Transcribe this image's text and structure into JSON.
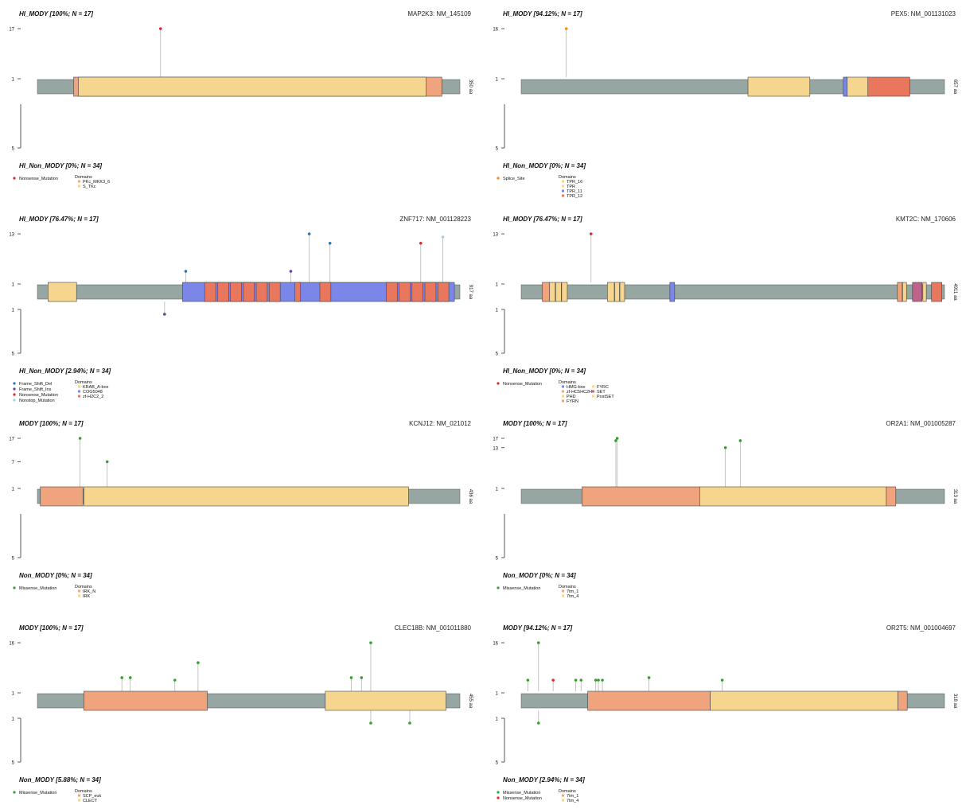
{
  "colors": {
    "backbone": "#95a6a3",
    "Nonsense_Mutation": "#e3242b",
    "Splice_Site": "#f5881f",
    "Frame_Shift_Del": "#1f78b4",
    "Frame_Shift_Ins": "#6a3d9a",
    "Nonstop_Mutation": "#a6cee3",
    "Missense_Mutation": "#33a02c",
    "lollipop_line": "#b5b5b5"
  },
  "chart_data": [
    {
      "type": "lollipop",
      "gene": "MAP2K3: NM_145109",
      "top_label": "HI_MODY [100%; N = 17]",
      "bottom_label": "HI_Non_MODY [0%; N = 34]",
      "protein_length": 350,
      "length_label": "350 aa",
      "top_ticks": [
        "17",
        "1"
      ],
      "bottom_ticks": [
        "5"
      ],
      "domains": [
        {
          "name": "PKc_MKK3_6",
          "start": 30,
          "end": 335,
          "color": "#f0a47e"
        },
        {
          "name": "S_TKc",
          "start": 34,
          "end": 322,
          "color": "#f6d68f"
        }
      ],
      "mutations": [
        {
          "pos": 102,
          "count": 17,
          "side": "top",
          "type": "Nonsense_Mutation"
        }
      ],
      "legend": [
        "Nonsense_Mutation"
      ]
    },
    {
      "type": "lollipop",
      "gene": "PEX5: NM_001131023",
      "top_label": "HI_MODY [94.12%; N = 17]",
      "bottom_label": "HI_Non_MODY [0%; N = 34]",
      "protein_length": 657,
      "length_label": "657 aa",
      "top_ticks": [
        "16",
        "1"
      ],
      "bottom_ticks": [
        "5"
      ],
      "domains": [
        {
          "name": "TPR_16",
          "start": 352,
          "end": 448,
          "color": "#f6d68f"
        },
        {
          "name": "TPR",
          "start": 504,
          "end": 540,
          "color": "#f6d68f"
        },
        {
          "name": "TPR_11",
          "start": 500,
          "end": 506,
          "color": "#7b87e8"
        },
        {
          "name": "TPR_12",
          "start": 538,
          "end": 603,
          "color": "#e8775e"
        }
      ],
      "mutations": [
        {
          "pos": 70,
          "count": 16,
          "side": "top",
          "type": "Splice_Site"
        }
      ],
      "legend": [
        "Splice_Site"
      ]
    },
    {
      "type": "lollipop",
      "gene": "ZNF717: NM_001128223",
      "top_label": "HI_MODY [76.47%; N = 17]",
      "bottom_label": "HI_Non_MODY [2.94%; N = 34]",
      "protein_length": 917,
      "length_label": "917 aa",
      "top_ticks": [
        "13",
        "1"
      ],
      "bottom_ticks": [
        "1",
        "5"
      ],
      "domains": [
        {
          "name": "KRAB_A-box",
          "start": 23,
          "end": 85,
          "color": "#f6d68f"
        },
        {
          "name": "COG5048",
          "start": 315,
          "end": 905,
          "color": "#7b87e8"
        },
        {
          "name": "zf-H2C2_2",
          "start": 363,
          "end": 387,
          "color": "#e8775e"
        },
        {
          "name": "zf-H2C2_2",
          "start": 391,
          "end": 415,
          "color": "#e8775e"
        },
        {
          "name": "zf-H2C2_2",
          "start": 419,
          "end": 443,
          "color": "#e8775e"
        },
        {
          "name": "zf-H2C2_2",
          "start": 447,
          "end": 471,
          "color": "#e8775e"
        },
        {
          "name": "zf-H2C2_2",
          "start": 475,
          "end": 499,
          "color": "#e8775e"
        },
        {
          "name": "zf-H2C2_2",
          "start": 503,
          "end": 527,
          "color": "#e8775e"
        },
        {
          "name": "zf-H2C2_2",
          "start": 559,
          "end": 571,
          "color": "#e8775e"
        },
        {
          "name": "zf-H2C2_2",
          "start": 613,
          "end": 637,
          "color": "#e8775e"
        },
        {
          "name": "zf-H2C2_2",
          "start": 757,
          "end": 781,
          "color": "#e8775e"
        },
        {
          "name": "zf-H2C2_2",
          "start": 785,
          "end": 809,
          "color": "#e8775e"
        },
        {
          "name": "zf-H2C2_2",
          "start": 813,
          "end": 837,
          "color": "#e8775e"
        },
        {
          "name": "zf-H2C2_2",
          "start": 841,
          "end": 865,
          "color": "#e8775e"
        },
        {
          "name": "zf-H2C2_2",
          "start": 869,
          "end": 893,
          "color": "#e8775e"
        }
      ],
      "mutations": [
        {
          "pos": 322,
          "count": 1,
          "side": "top",
          "type": "Frame_Shift_Del"
        },
        {
          "pos": 550,
          "count": 1,
          "side": "top",
          "type": "Frame_Shift_Ins"
        },
        {
          "pos": 590,
          "count": 13,
          "side": "top",
          "type": "Frame_Shift_Del"
        },
        {
          "pos": 635,
          "count": 10,
          "side": "top",
          "type": "Frame_Shift_Del"
        },
        {
          "pos": 832,
          "count": 10,
          "side": "top",
          "type": "Nonsense_Mutation"
        },
        {
          "pos": 880,
          "count": 12,
          "side": "top",
          "type": "Nonstop_Mutation"
        },
        {
          "pos": 276,
          "count": 1,
          "side": "bottom",
          "type": "Frame_Shift_Ins"
        }
      ],
      "legend": [
        "Frame_Shift_Del",
        "Frame_Shift_Ins",
        "Nonsense_Mutation",
        "Nonstop_Mutation"
      ]
    },
    {
      "type": "lollipop",
      "gene": "KMT2C: NM_170606",
      "top_label": "HI_MODY [76.47%; N = 17]",
      "bottom_label": "HI_Non_MODY [0%; N = 34]",
      "protein_length": 4911,
      "length_label": "4911 aa",
      "top_ticks": [
        "13",
        "1"
      ],
      "bottom_ticks": [
        "1",
        "5"
      ],
      "domains": [
        {
          "name": "HMG-box",
          "start": 1725,
          "end": 1780,
          "color": "#7b87e8"
        },
        {
          "name": "zf-HC5HC2H",
          "start": 245,
          "end": 330,
          "color": "#f0a47e"
        },
        {
          "name": "PHD",
          "start": 330,
          "end": 395,
          "color": "#f6d68f"
        },
        {
          "name": "PHD",
          "start": 400,
          "end": 465,
          "color": "#f6d68f"
        },
        {
          "name": "PHD",
          "start": 470,
          "end": 535,
          "color": "#f6d68f"
        },
        {
          "name": "PHD",
          "start": 1000,
          "end": 1080,
          "color": "#f6d68f"
        },
        {
          "name": "PHD",
          "start": 1085,
          "end": 1140,
          "color": "#f6d68f"
        },
        {
          "name": "PHD",
          "start": 1145,
          "end": 1200,
          "color": "#f6d68f"
        },
        {
          "name": "FYRN",
          "start": 4365,
          "end": 4420,
          "color": "#f0a47e"
        },
        {
          "name": "FYRC",
          "start": 4425,
          "end": 4470,
          "color": "#f6d68f"
        },
        {
          "name": "SET",
          "start": 4540,
          "end": 4650,
          "color": "#c0628a"
        },
        {
          "name": "PostSET",
          "start": 4660,
          "end": 4700,
          "color": "#f6d68f"
        },
        {
          "name": "SET",
          "start": 4760,
          "end": 4880,
          "color": "#e8775e"
        }
      ],
      "mutations": [
        {
          "pos": 810,
          "count": 13,
          "side": "top",
          "type": "Nonsense_Mutation"
        }
      ],
      "legend": [
        "Nonsense_Mutation"
      ]
    },
    {
      "type": "lollipop",
      "gene": "KCNJ12: NM_021012",
      "top_label": "MODY [100%; N = 17]",
      "bottom_label": "Non_MODY [0%; N = 34]",
      "protein_length": 436,
      "length_label": "436 aa",
      "top_ticks": [
        "17",
        "7",
        "1"
      ],
      "bottom_ticks": [
        "5"
      ],
      "domains": [
        {
          "name": "IRK_N",
          "start": 3,
          "end": 47,
          "color": "#f0a47e"
        },
        {
          "name": "IRK",
          "start": 48,
          "end": 383,
          "color": "#f6d68f"
        }
      ],
      "mutations": [
        {
          "pos": 44,
          "count": 17,
          "side": "top",
          "type": "Missense_Mutation"
        },
        {
          "pos": 72,
          "count": 7,
          "side": "top",
          "type": "Missense_Mutation"
        }
      ],
      "legend": [
        "Missense_Mutation"
      ]
    },
    {
      "type": "lollipop",
      "gene": "OR2A1: NM_001005287",
      "top_label": "MODY [100%; N = 17]",
      "bottom_label": "Non_MODY [0%; N = 34]",
      "protein_length": 313,
      "length_label": "313 aa",
      "top_ticks": [
        "17",
        "13",
        "1"
      ],
      "bottom_ticks": [
        "5"
      ],
      "domains": [
        {
          "name": "7tm_1",
          "start": 45,
          "end": 132,
          "color": "#f0a47e"
        },
        {
          "name": "7tm_4",
          "start": 132,
          "end": 270,
          "color": "#f6d68f"
        },
        {
          "name": "7tm_1",
          "start": 270,
          "end": 277,
          "color": "#f0a47e"
        }
      ],
      "mutations": [
        {
          "pos": 70,
          "count": 16,
          "side": "top",
          "type": "Missense_Mutation"
        },
        {
          "pos": 71,
          "count": 17,
          "side": "top",
          "type": "Missense_Mutation"
        },
        {
          "pos": 151,
          "count": 13,
          "side": "top",
          "type": "Missense_Mutation"
        },
        {
          "pos": 162,
          "count": 16,
          "side": "top",
          "type": "Missense_Mutation"
        }
      ],
      "legend": [
        "Missense_Mutation"
      ]
    },
    {
      "type": "lollipop",
      "gene": "CLEC18B: NM_001011880",
      "top_label": "MODY [100%; N = 17]",
      "bottom_label": "Non_MODY [5.88%; N = 34]",
      "protein_length": 455,
      "length_label": "455 aa",
      "top_ticks": [
        "16",
        "1"
      ],
      "bottom_ticks": [
        "1",
        "5"
      ],
      "domains": [
        {
          "name": "SCP_euk",
          "start": 50,
          "end": 183,
          "color": "#f0a47e"
        },
        {
          "name": "CLECT",
          "start": 310,
          "end": 440,
          "color": "#f6d68f"
        }
      ],
      "mutations": [
        {
          "pos": 91,
          "count": 2,
          "side": "top",
          "type": "Missense_Mutation"
        },
        {
          "pos": 100,
          "count": 2,
          "side": "top",
          "type": "Missense_Mutation"
        },
        {
          "pos": 148,
          "count": 1,
          "side": "top",
          "type": "Missense_Mutation"
        },
        {
          "pos": 173,
          "count": 8,
          "side": "top",
          "type": "Missense_Mutation"
        },
        {
          "pos": 338,
          "count": 2,
          "side": "top",
          "type": "Missense_Mutation"
        },
        {
          "pos": 349,
          "count": 2,
          "side": "top",
          "type": "Missense_Mutation"
        },
        {
          "pos": 359,
          "count": 16,
          "side": "top",
          "type": "Missense_Mutation"
        },
        {
          "pos": 359,
          "count": 1,
          "side": "bottom",
          "type": "Missense_Mutation"
        },
        {
          "pos": 401,
          "count": 1,
          "side": "bottom",
          "type": "Missense_Mutation"
        }
      ],
      "legend": [
        "Missense_Mutation"
      ]
    },
    {
      "type": "lollipop",
      "gene": "OR2T5: NM_001004697",
      "top_label": "MODY [94.12%; N = 17]",
      "bottom_label": "Non_MODY [2.94%; N = 34]",
      "protein_length": 318,
      "length_label": "318 aa",
      "top_ticks": [
        "16",
        "1"
      ],
      "bottom_ticks": [
        "1",
        "5"
      ],
      "domains": [
        {
          "name": "7tm_1",
          "start": 50,
          "end": 142,
          "color": "#f0a47e"
        },
        {
          "name": "7tm_4",
          "start": 142,
          "end": 283,
          "color": "#f6d68f"
        },
        {
          "name": "7tm_1",
          "start": 283,
          "end": 290,
          "color": "#f0a47e"
        }
      ],
      "mutations": [
        {
          "pos": 5,
          "count": 1,
          "side": "top",
          "type": "Missense_Mutation"
        },
        {
          "pos": 13,
          "count": 16,
          "side": "top",
          "type": "Missense_Mutation"
        },
        {
          "pos": 24,
          "count": 1,
          "side": "top",
          "type": "Nonsense_Mutation"
        },
        {
          "pos": 41,
          "count": 1,
          "side": "top",
          "type": "Missense_Mutation"
        },
        {
          "pos": 45,
          "count": 1,
          "side": "top",
          "type": "Missense_Mutation"
        },
        {
          "pos": 56,
          "count": 1,
          "side": "top",
          "type": "Missense_Mutation"
        },
        {
          "pos": 58,
          "count": 1,
          "side": "top",
          "type": "Missense_Mutation"
        },
        {
          "pos": 61,
          "count": 1,
          "side": "top",
          "type": "Missense_Mutation"
        },
        {
          "pos": 96,
          "count": 2,
          "side": "top",
          "type": "Missense_Mutation"
        },
        {
          "pos": 151,
          "count": 1,
          "side": "top",
          "type": "Missense_Mutation"
        },
        {
          "pos": 13,
          "count": 1,
          "side": "bottom",
          "type": "Missense_Mutation"
        }
      ],
      "legend": [
        "Missense_Mutation",
        "Nonsense_Mutation"
      ]
    }
  ]
}
